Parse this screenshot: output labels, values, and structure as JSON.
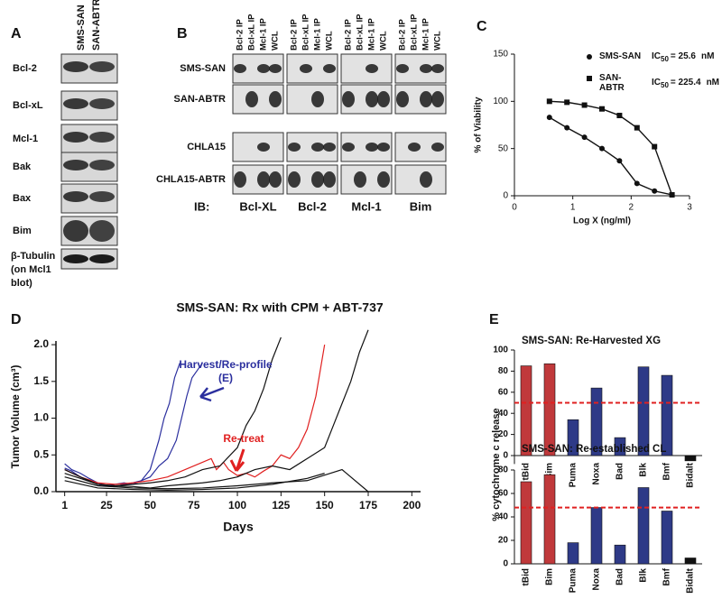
{
  "panels": {
    "A": {
      "label": "A",
      "columns": [
        "SMS-SAN",
        "SAN-ABTR"
      ],
      "rows": [
        "Bcl-2",
        "Bcl-xL",
        "Mcl-1",
        "Bak",
        "Bax",
        "Bim"
      ],
      "loading_control": [
        "β-Tubulin",
        "(on Mcl1",
        "blot)"
      ]
    },
    "B": {
      "label": "B",
      "column_labels": [
        "Bcl-2 IP",
        "Bcl-xL IP",
        "Mcl-1 IP",
        "WCL"
      ],
      "rows": [
        "SMS-SAN",
        "SAN-ABTR",
        "CHLA15",
        "CHLA15-ABTR"
      ],
      "ib_label": "IB:",
      "groups": [
        "Bcl-XL",
        "Bcl-2",
        "Mcl-1",
        "Bim"
      ]
    },
    "C": {
      "label": "C"
    },
    "D": {
      "label": "D"
    },
    "E": {
      "label": "E",
      "ylabel": "% cytochrome c release"
    }
  },
  "chart_data": [
    {
      "type": "scatter",
      "xlabel": "Log X (ng/ml)",
      "ylabel": "% of Viability",
      "xlim": [
        0,
        3
      ],
      "xticks": [
        0,
        1,
        2,
        3
      ],
      "ylim": [
        0,
        150
      ],
      "yticks": [
        0,
        50,
        100,
        150
      ],
      "series": [
        {
          "name": "SMS-SAN",
          "marker": "circle",
          "color": "#111111",
          "note": {
            "prefix": "IC",
            "sub": "50",
            "text": "= 25.6",
            "unit": "nM"
          },
          "x": [
            0.6,
            0.9,
            1.2,
            1.5,
            1.8,
            2.1,
            2.4,
            2.7
          ],
          "values": [
            83,
            72,
            62,
            50,
            37,
            13,
            5,
            1
          ]
        },
        {
          "name": "SAN-ABTR",
          "marker": "square",
          "color": "#111111",
          "note": {
            "prefix": "IC",
            "sub": "50",
            "text": "= 225.4",
            "unit": "nM"
          },
          "x": [
            0.6,
            0.9,
            1.2,
            1.5,
            1.8,
            2.1,
            2.4,
            2.7
          ],
          "values": [
            100,
            99,
            96,
            92,
            85,
            72,
            52,
            1
          ]
        }
      ]
    },
    {
      "type": "line",
      "title": "SMS-SAN: Rx with CPM + ABT-737",
      "xlabel": "Days",
      "ylabel": "Tumor Volume (cm³)",
      "xlim": [
        -4,
        205
      ],
      "xticks": [
        1,
        25,
        50,
        75,
        100,
        125,
        150,
        175,
        200
      ],
      "ylim": [
        0,
        2.05
      ],
      "yticks": [
        {
          "value": 0,
          "label": "0.0"
        },
        {
          "value": 0.5,
          "label": "0.5"
        },
        {
          "value": 1,
          "label": "1.0"
        },
        {
          "value": 1.5,
          "label": "1.5"
        },
        {
          "value": 2,
          "label": "2.0"
        }
      ],
      "annotations": [
        {
          "text": "Harvest/Re-profile",
          "color": "#2b2f9e"
        },
        {
          "text": "(E)",
          "color": "#2b2f9e"
        },
        {
          "text": "Re-treat",
          "color": "#e02020"
        }
      ],
      "series": [
        {
          "color": "#2b2f9e",
          "x": [
            1,
            5,
            10,
            15,
            20,
            25,
            30,
            35,
            40,
            45,
            50,
            55,
            58,
            61,
            64,
            67
          ],
          "values": [
            0.38,
            0.3,
            0.25,
            0.18,
            0.12,
            0.08,
            0.07,
            0.1,
            0.12,
            0.15,
            0.3,
            0.7,
            1.0,
            1.2,
            1.55,
            1.75
          ]
        },
        {
          "color": "#2b2f9e",
          "x": [
            1,
            5,
            10,
            15,
            20,
            25,
            30,
            35,
            40,
            45,
            50,
            55,
            60,
            65,
            68,
            71,
            74,
            77,
            80
          ],
          "values": [
            0.32,
            0.28,
            0.2,
            0.15,
            0.1,
            0.08,
            0.1,
            0.12,
            0.1,
            0.15,
            0.2,
            0.35,
            0.45,
            0.7,
            1.0,
            1.3,
            1.55,
            1.65,
            1.75
          ]
        },
        {
          "color": "#e02020",
          "x": [
            1,
            10,
            20,
            30,
            40,
            50,
            60,
            70,
            80,
            85,
            88,
            92,
            95,
            100,
            105,
            110,
            115,
            120,
            125,
            130,
            135,
            140,
            145,
            150
          ],
          "values": [
            0.3,
            0.2,
            0.12,
            0.1,
            0.12,
            0.15,
            0.2,
            0.3,
            0.4,
            0.45,
            0.3,
            0.4,
            0.3,
            0.22,
            0.25,
            0.2,
            0.28,
            0.35,
            0.5,
            0.45,
            0.6,
            0.85,
            1.3,
            2.0
          ]
        },
        {
          "color": "#111111",
          "x": [
            1,
            10,
            20,
            30,
            40,
            50,
            60,
            70,
            80,
            90,
            100,
            105,
            110,
            115,
            120,
            125
          ],
          "values": [
            0.3,
            0.2,
            0.1,
            0.08,
            0.1,
            0.12,
            0.15,
            0.2,
            0.3,
            0.35,
            0.6,
            0.9,
            1.1,
            1.4,
            1.8,
            2.1
          ]
        },
        {
          "color": "#111111",
          "x": [
            1,
            10,
            20,
            30,
            40,
            50,
            60,
            70,
            80,
            90,
            100,
            110,
            120,
            130,
            140,
            150,
            155,
            160,
            165,
            170,
            175
          ],
          "values": [
            0.25,
            0.18,
            0.1,
            0.08,
            0.07,
            0.05,
            0.08,
            0.1,
            0.12,
            0.15,
            0.2,
            0.3,
            0.35,
            0.3,
            0.45,
            0.6,
            0.9,
            1.2,
            1.5,
            1.9,
            2.2
          ]
        },
        {
          "color": "#111111",
          "x": [
            1,
            20,
            40,
            60,
            80,
            100,
            120,
            140,
            160,
            175
          ],
          "values": [
            0.2,
            0.08,
            0.05,
            0.04,
            0.05,
            0.08,
            0.12,
            0.15,
            0.3,
            0.0
          ]
        },
        {
          "color": "#111111",
          "x": [
            1,
            20,
            40,
            60,
            80,
            100,
            120,
            140,
            150
          ],
          "values": [
            0.15,
            0.05,
            0.03,
            0.02,
            0.03,
            0.05,
            0.1,
            0.18,
            0.25
          ]
        }
      ]
    },
    {
      "type": "bar",
      "title": "SMS-SAN: Re-Harvested XG",
      "categories": [
        "tBid",
        "Bim",
        "Puma",
        "Noxa",
        "Bad",
        "Blk",
        "Bmf",
        "Bidalt"
      ],
      "values": [
        85,
        87,
        34,
        64,
        17,
        84,
        76,
        -5
      ],
      "colors": [
        "#c0393b",
        "#c0393b",
        "#2e3a87",
        "#2e3a87",
        "#2e3a87",
        "#2e3a87",
        "#2e3a87",
        "#111111"
      ],
      "threshold": 50,
      "threshold_color": "#e02020",
      "ylim": [
        -8,
        100
      ],
      "yticks": [
        0,
        20,
        40,
        60,
        80,
        100
      ]
    },
    {
      "type": "bar",
      "title": "SMS-SAN: Re-established CL",
      "categories": [
        "tBid",
        "Bim",
        "Puma",
        "Noxa",
        "Bad",
        "Blk",
        "Bmf",
        "Bidalt"
      ],
      "values": [
        70,
        76,
        18,
        48,
        16,
        65,
        45,
        5
      ],
      "colors": [
        "#c0393b",
        "#c0393b",
        "#2e3a87",
        "#2e3a87",
        "#2e3a87",
        "#2e3a87",
        "#2e3a87",
        "#111111"
      ],
      "threshold": 48,
      "threshold_color": "#e02020",
      "ylim": [
        0,
        80
      ],
      "yticks": [
        0,
        20,
        40,
        60,
        80
      ]
    }
  ]
}
